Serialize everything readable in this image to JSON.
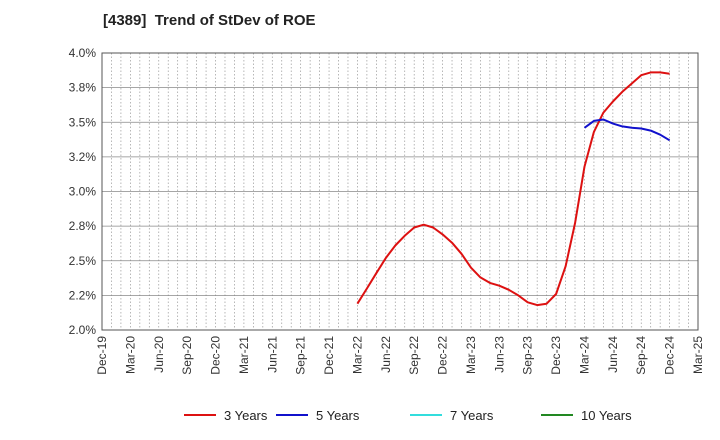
{
  "chart_data": {
    "type": "line",
    "title": "[4389]  Trend of StDev of ROE",
    "xlabel": "",
    "ylabel": "",
    "ylim": [
      2.0,
      4.0
    ],
    "y_ticks": [
      "2.0%",
      "2.2%",
      "2.5%",
      "2.8%",
      "3.0%",
      "3.2%",
      "3.5%",
      "3.8%",
      "4.0%"
    ],
    "x_ticks": [
      "Dec-19",
      "Mar-20",
      "Jun-20",
      "Sep-20",
      "Dec-20",
      "Mar-21",
      "Jun-21",
      "Sep-21",
      "Dec-21",
      "Mar-22",
      "Jun-22",
      "Sep-22",
      "Dec-22",
      "Mar-23",
      "Jun-23",
      "Sep-23",
      "Dec-23",
      "Mar-24",
      "Jun-24",
      "Sep-24",
      "Dec-24",
      "Mar-25"
    ],
    "grid": true,
    "legend_position": "bottom",
    "series": [
      {
        "name": "3 Years",
        "color": "#dd1111",
        "points": [
          [
            "Mar-22",
            2.19
          ],
          [
            "Apr-22",
            2.3
          ],
          [
            "May-22",
            2.41
          ],
          [
            "Jun-22",
            2.52
          ],
          [
            "Jul-22",
            2.61
          ],
          [
            "Aug-22",
            2.68
          ],
          [
            "Sep-22",
            2.74
          ],
          [
            "Oct-22",
            2.76
          ],
          [
            "Nov-22",
            2.74
          ],
          [
            "Dec-22",
            2.69
          ],
          [
            "Jan-23",
            2.63
          ],
          [
            "Feb-23",
            2.55
          ],
          [
            "Mar-23",
            2.45
          ],
          [
            "Apr-23",
            2.38
          ],
          [
            "May-23",
            2.34
          ],
          [
            "Jun-23",
            2.32
          ],
          [
            "Jul-23",
            2.29
          ],
          [
            "Aug-23",
            2.25
          ],
          [
            "Sep-23",
            2.2
          ],
          [
            "Oct-23",
            2.18
          ],
          [
            "Nov-23",
            2.19
          ],
          [
            "Dec-23",
            2.26
          ],
          [
            "Jan-24",
            2.46
          ],
          [
            "Feb-24",
            2.77
          ],
          [
            "Mar-24",
            3.18
          ],
          [
            "Apr-24",
            3.43
          ],
          [
            "May-24",
            3.57
          ],
          [
            "Jun-24",
            3.65
          ],
          [
            "Jul-24",
            3.72
          ],
          [
            "Aug-24",
            3.78
          ],
          [
            "Sep-24",
            3.84
          ],
          [
            "Oct-24",
            3.86
          ],
          [
            "Nov-24",
            3.86
          ],
          [
            "Dec-24",
            3.85
          ]
        ]
      },
      {
        "name": "5 Years",
        "color": "#1111cc",
        "points": [
          [
            "Mar-24",
            3.46
          ],
          [
            "Apr-24",
            3.51
          ],
          [
            "May-24",
            3.52
          ],
          [
            "Jun-24",
            3.49
          ],
          [
            "Jul-24",
            3.47
          ],
          [
            "Aug-24",
            3.46
          ],
          [
            "Sep-24",
            3.455
          ],
          [
            "Oct-24",
            3.44
          ],
          [
            "Nov-24",
            3.41
          ],
          [
            "Dec-24",
            3.37
          ]
        ]
      },
      {
        "name": "7 Years",
        "color": "#33dddd",
        "points": []
      },
      {
        "name": "10 Years",
        "color": "#228822",
        "points": []
      }
    ]
  }
}
